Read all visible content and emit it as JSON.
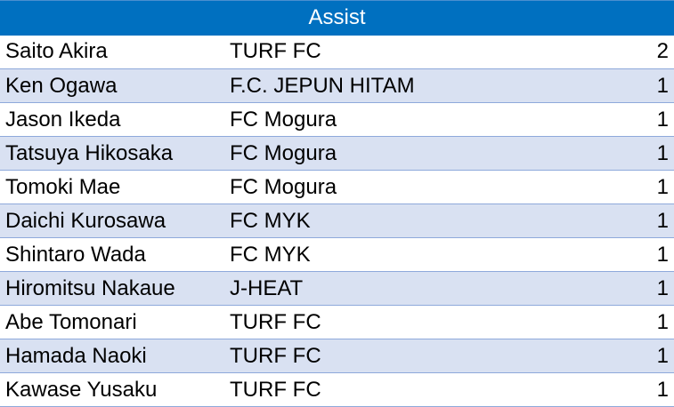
{
  "table": {
    "title": "Assist",
    "rows": [
      {
        "player": "Saito Akira",
        "team": "TURF FC",
        "assists": "2"
      },
      {
        "player": "Ken Ogawa",
        "team": "F.C. JEPUN HITAM",
        "assists": "1"
      },
      {
        "player": "Jason Ikeda",
        "team": "FC Mogura",
        "assists": "1"
      },
      {
        "player": "Tatsuya Hikosaka",
        "team": "FC Mogura",
        "assists": "1"
      },
      {
        "player": "Tomoki Mae",
        "team": "FC Mogura",
        "assists": "1"
      },
      {
        "player": "Daichi Kurosawa",
        "team": "FC MYK",
        "assists": "1"
      },
      {
        "player": "Shintaro Wada",
        "team": "FC MYK",
        "assists": "1"
      },
      {
        "player": "Hiromitsu Nakaue",
        "team": "J-HEAT",
        "assists": "1"
      },
      {
        "player": "Abe Tomonari",
        "team": "TURF FC",
        "assists": "1"
      },
      {
        "player": "Hamada Naoki",
        "team": "TURF FC",
        "assists": "1"
      },
      {
        "player": "Kawase Yusaku",
        "team": "TURF FC",
        "assists": "1"
      }
    ]
  },
  "colors": {
    "header_bg": "#0070c0",
    "header_text": "#ffffff",
    "stripe": "#d9e1f2",
    "row_border": "#8ea9db"
  }
}
